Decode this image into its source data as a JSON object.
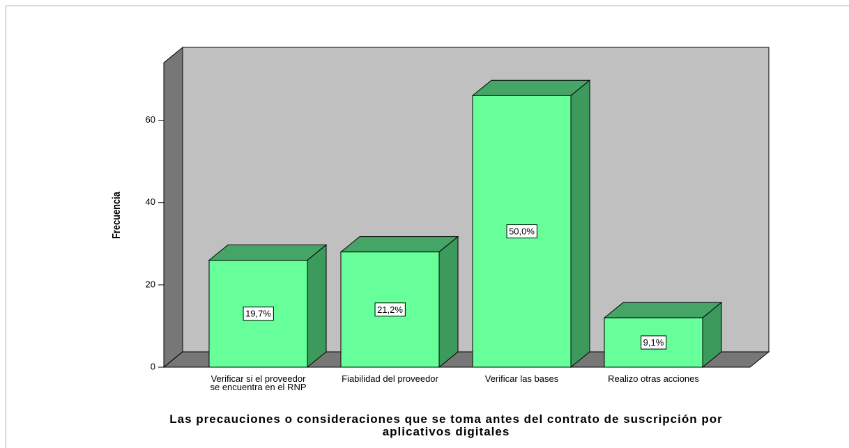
{
  "chart_data": {
    "type": "bar3d",
    "x_label": "Las precauciones o consideraciones que se toma antes del contrato de suscripción por aplicativos digitales",
    "y_label": "Frecuencia",
    "categories": [
      "Verificar si el proveedor se encuentra en el RNP",
      "Fiabilidad del proveedor",
      "Verificar las bases",
      "Realizo otras acciones"
    ],
    "values": [
      26,
      28,
      66,
      12
    ],
    "percentages": [
      19.7,
      21.2,
      50.0,
      9.1
    ],
    "percentage_labels": [
      "19,7%",
      "21,2%",
      "50,0%",
      "9,1%"
    ],
    "color": "#66ff99",
    "ylim": [
      0,
      74
    ],
    "yticks": [
      0,
      20,
      40,
      60
    ]
  }
}
